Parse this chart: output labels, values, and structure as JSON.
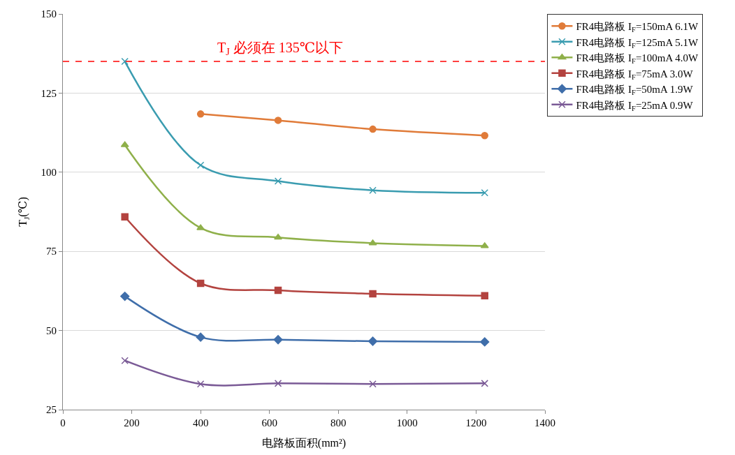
{
  "chart_data": {
    "type": "line",
    "xlabel": "电路板面积(mm²)",
    "ylabel": "T$_{J}$(℃)",
    "x": [
      180,
      400,
      625,
      900,
      1225
    ],
    "xlim": [
      0,
      1400
    ],
    "xticks": [
      0,
      200,
      400,
      600,
      800,
      1000,
      1200,
      1400
    ],
    "ylim": [
      25,
      150
    ],
    "yticks": [
      25,
      50,
      75,
      100,
      125,
      150
    ],
    "grid": "y",
    "legend": "top right",
    "ref_lines": [
      {
        "axis": "y",
        "value": 135,
        "label": "T$_{J}$ 必须在 135℃以下",
        "color": "#ff0000",
        "line_style": "dashed"
      }
    ],
    "series": [
      {
        "name": "FR4电路板 I$_{F}$=150mA 6.1W",
        "color": "#e07b39",
        "marker": "circle",
        "values": [
          null,
          118.4,
          116.4,
          113.6,
          111.6
        ]
      },
      {
        "name": "FR4电路板 I$_{F}$=125mA 5.1W",
        "color": "#3a9cb0",
        "marker": "cross",
        "values": [
          135,
          102.2,
          97.2,
          94.3,
          93.5
        ]
      },
      {
        "name": "FR4电路板 I$_{F}$=100mA 4.0W",
        "color": "#8fb04a",
        "marker": "triangle",
        "values": [
          108.6,
          82.4,
          79.4,
          77.6,
          76.7
        ]
      },
      {
        "name": "FR4电路板 I$_{F}$=75mA 3.0W",
        "color": "#b3433f",
        "marker": "square",
        "values": [
          85.9,
          64.9,
          62.7,
          61.6,
          61.0
        ]
      },
      {
        "name": "FR4电路板 I$_{F}$=50mA 1.9W",
        "color": "#3f6eaa",
        "marker": "diamond",
        "values": [
          60.8,
          47.9,
          47.1,
          46.6,
          46.4
        ]
      },
      {
        "name": "FR4电路板 I$_{F}$=25mA 0.9W",
        "color": "#7a5a96",
        "marker": "cross",
        "values": [
          40.5,
          33.1,
          33.3,
          33.1,
          33.3
        ]
      }
    ]
  }
}
